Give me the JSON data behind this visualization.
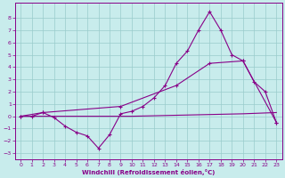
{
  "xlabel": "Windchill (Refroidissement éolien,°C)",
  "xlim": [
    -0.5,
    23.5
  ],
  "ylim": [
    -3.5,
    9.2
  ],
  "xticks": [
    0,
    1,
    2,
    3,
    4,
    5,
    6,
    7,
    8,
    9,
    10,
    11,
    12,
    13,
    14,
    15,
    16,
    17,
    18,
    19,
    20,
    21,
    22,
    23
  ],
  "yticks": [
    -3,
    -2,
    -1,
    0,
    1,
    2,
    3,
    4,
    5,
    6,
    7,
    8
  ],
  "bg_color": "#c8ecec",
  "line_color": "#880088",
  "grid_color": "#99cccc",
  "line1_x": [
    0,
    1,
    2,
    3,
    4,
    5,
    6,
    7,
    8,
    9,
    10,
    11,
    12,
    13,
    14,
    15,
    16,
    17,
    18,
    19,
    20,
    21,
    22,
    23
  ],
  "line1_y": [
    0.0,
    0.0,
    0.3,
    -0.1,
    -0.8,
    -1.3,
    -1.6,
    -2.6,
    -1.5,
    0.2,
    0.4,
    0.8,
    1.5,
    2.5,
    4.3,
    5.3,
    7.0,
    8.5,
    7.0,
    5.0,
    4.5,
    2.8,
    2.0,
    -0.5
  ],
  "line2_x": [
    0,
    2,
    9,
    14,
    17,
    20,
    23
  ],
  "line2_y": [
    0.0,
    0.3,
    0.8,
    2.5,
    4.3,
    4.5,
    -0.5
  ],
  "line3_x": [
    0,
    5,
    10,
    15,
    20,
    23
  ],
  "line3_y": [
    0.0,
    0.0,
    0.0,
    0.1,
    0.2,
    0.3
  ]
}
